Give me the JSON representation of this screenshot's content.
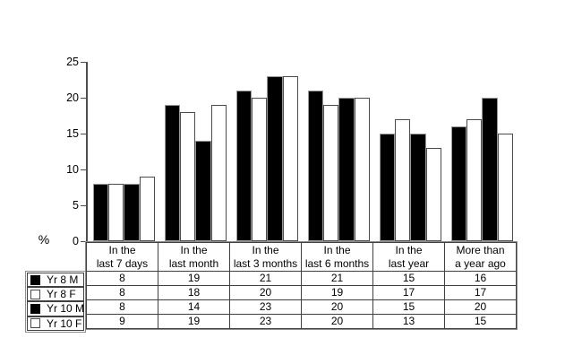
{
  "chart_data": {
    "type": "bar",
    "title": "",
    "xlabel": "",
    "ylabel": "%",
    "ylim": [
      0,
      25
    ],
    "yticks": [
      0,
      5,
      10,
      15,
      20,
      25
    ],
    "grid": false,
    "legend_position": "left-of-data-table",
    "data_table_shown": true,
    "categories": [
      "In the last 7 days",
      "In the last month",
      "In the last 3 months",
      "In the last 6 months",
      "In the last year",
      "More than a year ago"
    ],
    "category_lines": [
      [
        "In the",
        "last 7 days"
      ],
      [
        "In the",
        "last month"
      ],
      [
        "In the",
        "last 3 months"
      ],
      [
        "In the",
        "last 6 months"
      ],
      [
        "In the",
        "last year"
      ],
      [
        "More than",
        "a year ago"
      ]
    ],
    "series": [
      {
        "name": "Yr 8 M",
        "fill": "#000000",
        "values": [
          8,
          19,
          21,
          21,
          15,
          16
        ]
      },
      {
        "name": "Yr 8 F",
        "fill": "#ffffff",
        "values": [
          8,
          18,
          20,
          19,
          17,
          17
        ]
      },
      {
        "name": "Yr 10 M",
        "fill": "#000000",
        "values": [
          8,
          14,
          23,
          20,
          15,
          20
        ]
      },
      {
        "name": "Yr 10 F",
        "fill": "#ffffff",
        "values": [
          9,
          19,
          23,
          20,
          13,
          15
        ]
      }
    ],
    "colors": {
      "bar_black": "#000000",
      "bar_white": "#ffffff",
      "bar_black_border": "#999999",
      "bar_white_border": "#4d4d4d",
      "axis": "#4d4d4d",
      "baseline": "#808080",
      "table_border_dark": "#404040",
      "table_border_light": "#8c8c8c",
      "text": "#000000",
      "background": "#ffffff"
    }
  }
}
